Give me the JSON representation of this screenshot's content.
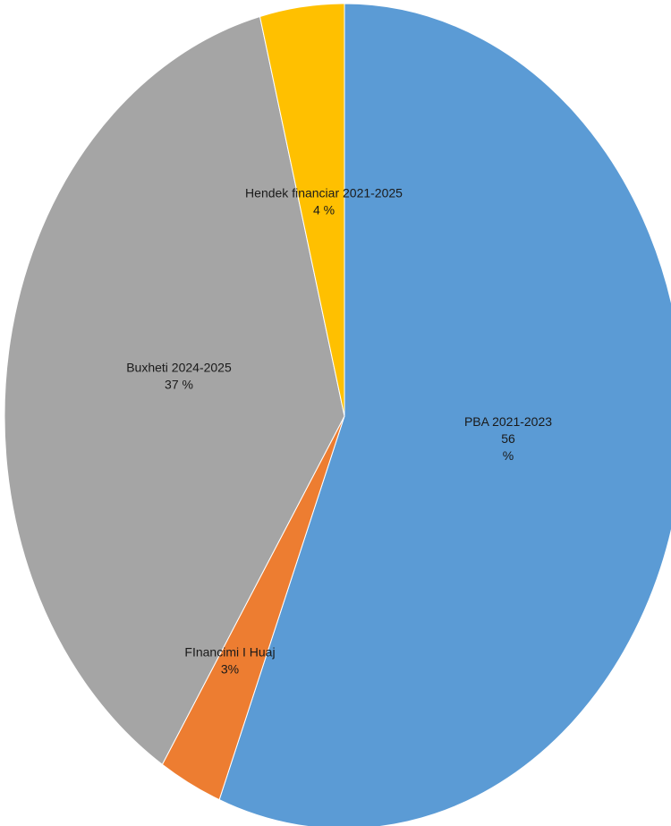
{
  "chart_data": {
    "type": "pie",
    "slices": [
      {
        "label_lines": [
          "PBA 2021-2023",
          "56",
          "%"
        ],
        "value": 56,
        "color": "#5B9BD5"
      },
      {
        "label_lines": [
          "FInancimi I Huaj",
          "3%"
        ],
        "value": 3,
        "color": "#ED7D31"
      },
      {
        "label_lines": [
          "Buxheti  2024-2025",
          "37 %"
        ],
        "value": 37,
        "color": "#A5A5A5"
      },
      {
        "label_lines": [
          "Hendek financiar 2021-2025",
          "4 %"
        ],
        "value": 4,
        "color": "#FFC000"
      }
    ],
    "start": "12 o'clock",
    "direction": "clockwise",
    "legend": "none"
  }
}
